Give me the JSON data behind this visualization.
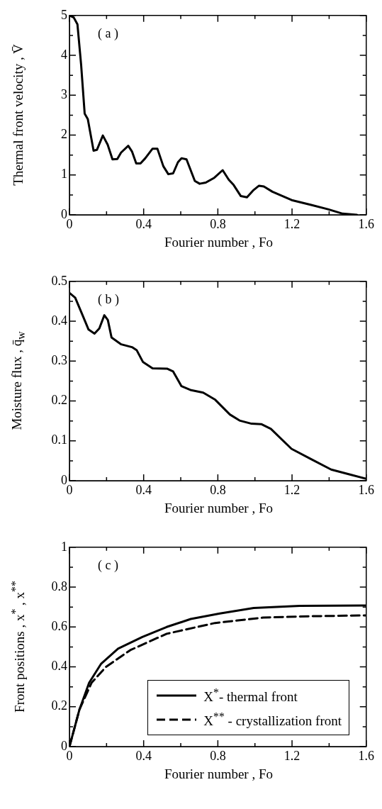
{
  "chart_data": [
    {
      "type": "line",
      "annotations": [
        "( a )"
      ],
      "xlabel": "Fourier number , Fo",
      "ylabel": "Thermal front velocity , V̄",
      "xlim": [
        0,
        1.6
      ],
      "ylim": [
        0,
        5
      ],
      "xticks": [
        0,
        {
          "value": 0.2,
          "label": null
        },
        0.4,
        {
          "value": 0.6,
          "label": null
        },
        0.8,
        {
          "value": 1.0,
          "label": null
        },
        1.2,
        {
          "value": 1.4,
          "label": null
        },
        1.6
      ],
      "yticks": [
        0,
        {
          "value": 0.5,
          "label": null
        },
        1,
        {
          "value": 1.5,
          "label": null
        },
        2,
        {
          "value": 2.5,
          "label": null
        },
        3,
        {
          "value": 3.5,
          "label": null
        },
        4,
        {
          "value": 4.5,
          "label": null
        },
        5
      ],
      "x": [
        0,
        0.023,
        0.043,
        0.063,
        0.082,
        0.099,
        0.13,
        0.148,
        0.18,
        0.206,
        0.232,
        0.258,
        0.278,
        0.317,
        0.337,
        0.36,
        0.383,
        0.409,
        0.448,
        0.474,
        0.506,
        0.533,
        0.559,
        0.585,
        0.604,
        0.631,
        0.676,
        0.702,
        0.735,
        0.781,
        0.826,
        0.859,
        0.885,
        0.924,
        0.957,
        0.99,
        1.022,
        1.048,
        1.094,
        1.198,
        1.303,
        1.394,
        1.473,
        1.55
      ],
      "series": [
        {
          "color": "#000000",
          "values": [
            5.0,
            4.95,
            4.78,
            3.76,
            2.54,
            2.4,
            1.61,
            1.63,
            1.99,
            1.76,
            1.39,
            1.4,
            1.56,
            1.73,
            1.59,
            1.29,
            1.29,
            1.42,
            1.66,
            1.66,
            1.22,
            1.02,
            1.04,
            1.32,
            1.42,
            1.39,
            0.85,
            0.78,
            0.81,
            0.93,
            1.12,
            0.88,
            0.75,
            0.47,
            0.44,
            0.61,
            0.73,
            0.71,
            0.58,
            0.37,
            0.25,
            0.14,
            0.03,
            0
          ]
        }
      ],
      "grid": false,
      "marker": "none",
      "line_style": "solid"
    },
    {
      "type": "line",
      "annotations": [
        "( b )"
      ],
      "xlabel": "Fourier number , Fo",
      "ylabel": "Moisture flux , q̄$_{w}$",
      "xlim": [
        0,
        1.6
      ],
      "ylim": [
        0,
        0.5
      ],
      "xticks": [
        0,
        {
          "value": 0.2,
          "label": null
        },
        0.4,
        {
          "value": 0.6,
          "label": null
        },
        0.8,
        {
          "value": 1.0,
          "label": null
        },
        1.2,
        {
          "value": 1.4,
          "label": null
        },
        1.6
      ],
      "yticks": [
        0,
        {
          "value": 0.05,
          "label": null
        },
        0.1,
        {
          "value": 0.15,
          "label": null
        },
        0.2,
        {
          "value": 0.25,
          "label": null
        },
        0.3,
        {
          "value": 0.35,
          "label": null
        },
        0.4,
        {
          "value": 0.45,
          "label": null
        },
        0.5
      ],
      "x": [
        0,
        0.031,
        0.07,
        0.103,
        0.135,
        0.161,
        0.188,
        0.207,
        0.227,
        0.279,
        0.337,
        0.363,
        0.396,
        0.448,
        0.526,
        0.559,
        0.604,
        0.656,
        0.721,
        0.786,
        0.865,
        0.917,
        0.982,
        1.034,
        1.086,
        1.197,
        1.307,
        1.411,
        1.516,
        1.6
      ],
      "series": [
        {
          "color": "#000000",
          "values": [
            0.471,
            0.459,
            0.416,
            0.379,
            0.369,
            0.382,
            0.415,
            0.403,
            0.359,
            0.342,
            0.335,
            0.327,
            0.298,
            0.282,
            0.281,
            0.274,
            0.237,
            0.227,
            0.221,
            0.203,
            0.166,
            0.151,
            0.143,
            0.142,
            0.13,
            0.08,
            0.053,
            0.028,
            0.015,
            0.005
          ]
        }
      ],
      "grid": false,
      "marker": "none",
      "line_style": "solid"
    },
    {
      "type": "line",
      "annotations": [
        "( c )"
      ],
      "xlabel": "Fourier number , Fo",
      "ylabel": "Front positions , x$^{*}$ , x$^{**}$",
      "xlim": [
        0,
        1.6
      ],
      "ylim": [
        0,
        1
      ],
      "xticks": [
        0,
        {
          "value": 0.2,
          "label": null
        },
        0.4,
        {
          "value": 0.6,
          "label": null
        },
        0.8,
        {
          "value": 1.0,
          "label": null
        },
        1.2,
        {
          "value": 1.4,
          "label": null
        },
        1.6
      ],
      "yticks": [
        0,
        {
          "value": 0.1,
          "label": null
        },
        0.2,
        {
          "value": 0.3,
          "label": null
        },
        0.4,
        {
          "value": 0.5,
          "label": null
        },
        0.6,
        {
          "value": 0.7,
          "label": null
        },
        0.8,
        {
          "value": 0.9,
          "label": null
        },
        1
      ],
      "series": [
        {
          "name": "X$^{*}$- thermal front",
          "color": "#000000",
          "line_style": "solid",
          "x": [
            0,
            0.054,
            0.106,
            0.171,
            0.262,
            0.393,
            0.524,
            0.654,
            0.811,
            0.993,
            1.241,
            1.6
          ],
          "values": [
            0,
            0.186,
            0.32,
            0.416,
            0.491,
            0.55,
            0.6,
            0.64,
            0.668,
            0.695,
            0.706,
            0.708
          ]
        },
        {
          "name": "X$^{**}$ - crystallization front",
          "color": "#000000",
          "line_style": "dashed",
          "x": [
            0,
            0.054,
            0.119,
            0.197,
            0.328,
            0.524,
            0.785,
            1.044,
            1.305,
            1.6
          ],
          "values": [
            0,
            0.186,
            0.32,
            0.4,
            0.484,
            0.566,
            0.62,
            0.647,
            0.654,
            0.658
          ]
        }
      ],
      "grid": false,
      "marker": "none",
      "legend": "bottom right"
    }
  ]
}
